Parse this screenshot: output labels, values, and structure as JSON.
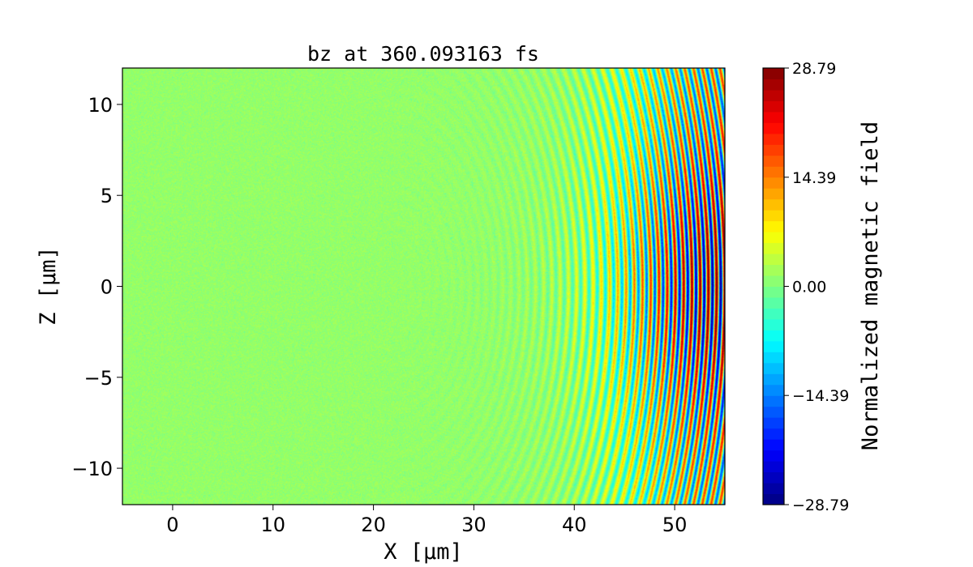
{
  "chart_data": {
    "type": "heatmap",
    "title": "bz at 360.093163 fs",
    "xlabel": "X [μm]",
    "ylabel": "Z [μm]",
    "xlim": [
      -5,
      55
    ],
    "ylim": [
      -12,
      12
    ],
    "xticks": [
      0,
      10,
      20,
      30,
      40,
      50
    ],
    "xtick_labels": [
      "0",
      "10",
      "20",
      "30",
      "40",
      "50"
    ],
    "yticks": [
      -10,
      -5,
      0,
      5,
      10
    ],
    "ytick_labels": [
      "−10",
      "−5",
      "0",
      "5",
      "10"
    ],
    "colormap": "jet",
    "color_levels": 40,
    "colorbar": {
      "label": "Normalized magnetic field",
      "range": [
        -28.79,
        28.79
      ],
      "ticks": [
        28.79,
        14.39,
        0.0,
        -14.39,
        -28.79
      ],
      "tick_labels": [
        "28.79",
        "14.39",
        "0.00",
        "−14.39",
        "−28.79"
      ]
    },
    "field_description": "curved wavefronts of a laser pulse propagating in +X, amplitude peaking near X≈48–55 μm, near-zero noisy background for X<25 μm"
  }
}
